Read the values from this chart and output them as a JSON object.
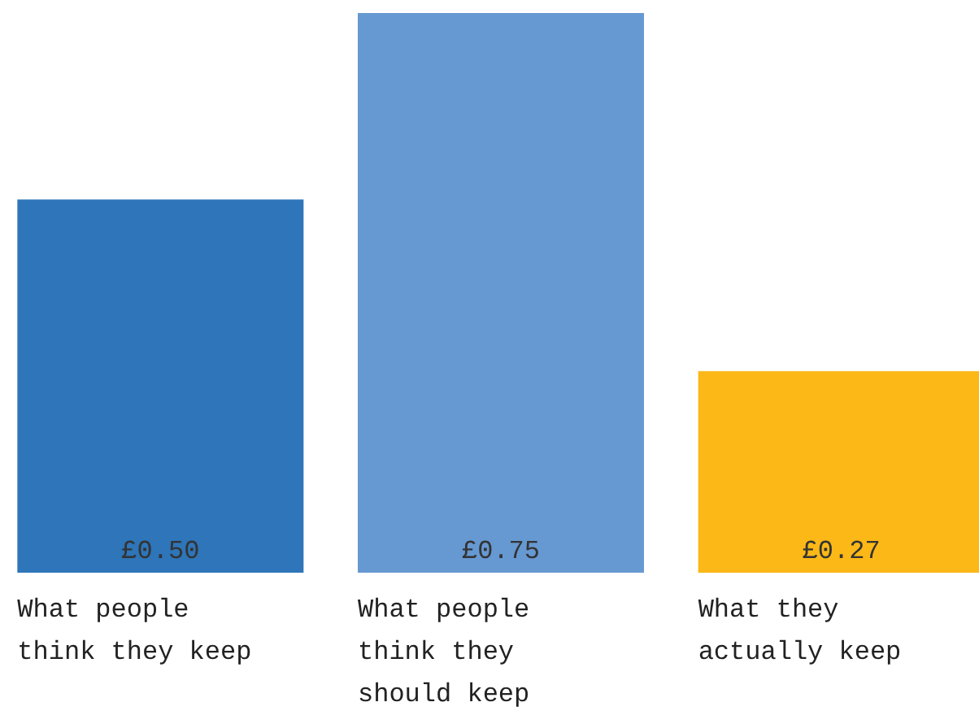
{
  "chart_data": {
    "type": "bar",
    "categories": [
      "What people think they keep",
      "What people think they should keep",
      "What they actually keep"
    ],
    "values": [
      0.5,
      0.75,
      0.27
    ],
    "colors": [
      "#2e75b9",
      "#6699d2",
      "#fbb817"
    ],
    "value_labels": [
      "£0.50",
      "£0.75",
      "£0.27"
    ],
    "grid": false
  }
}
